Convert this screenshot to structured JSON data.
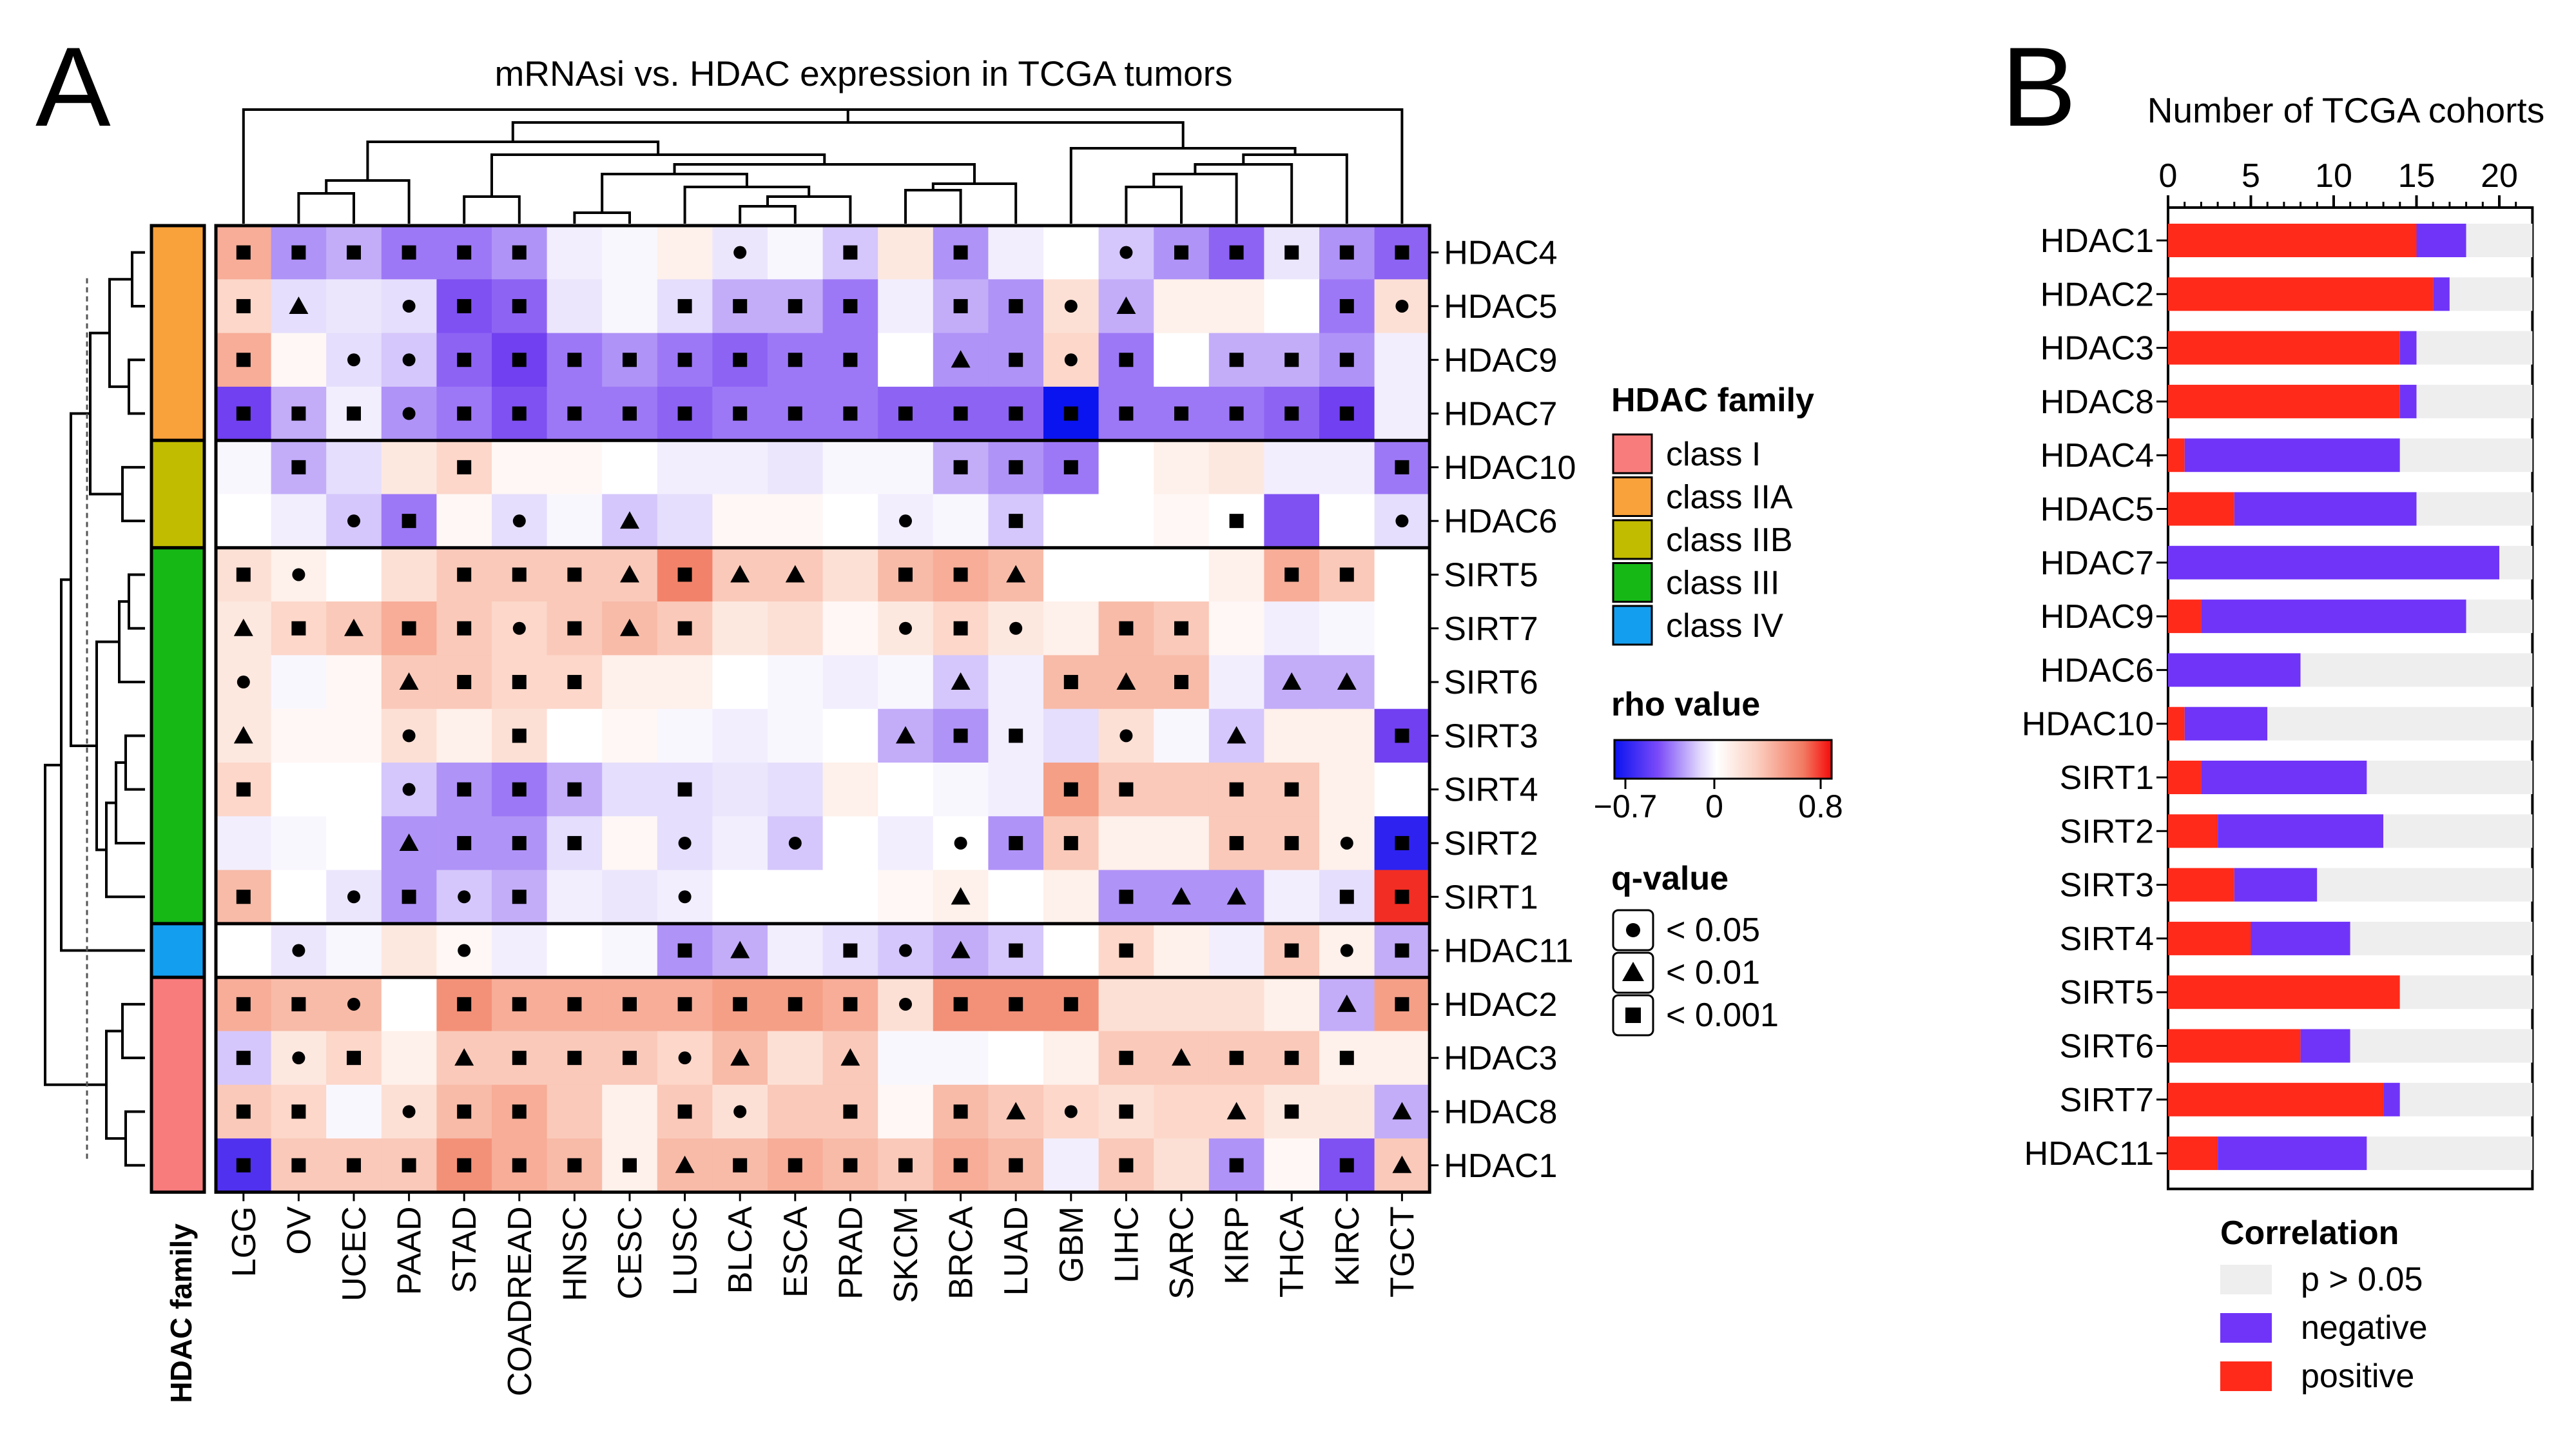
{
  "panel_a_letter": "A",
  "panel_b_letter": "B",
  "chart_data": [
    {
      "type": "heatmap",
      "panel": "A",
      "title": "mRNAsi vs. HDAC expression in TCGA tumors",
      "columns": [
        "LGG",
        "OV",
        "UCEC",
        "PAAD",
        "STAD",
        "COADREAD",
        "HNSC",
        "CESC",
        "LUSC",
        "BLCA",
        "ESCA",
        "PRAD",
        "SKCM",
        "BRCA",
        "LUAD",
        "GBM",
        "LIHC",
        "SARC",
        "KIRP",
        "THCA",
        "KIRC",
        "TGCT"
      ],
      "rows": [
        "HDAC4",
        "HDAC5",
        "HDAC9",
        "HDAC7",
        "HDAC10",
        "HDAC6",
        "SIRT5",
        "SIRT7",
        "SIRT6",
        "SIRT3",
        "SIRT4",
        "SIRT2",
        "SIRT1",
        "HDAC11",
        "HDAC2",
        "HDAC3",
        "HDAC8",
        "HDAC1"
      ],
      "row_family": [
        "class IIA",
        "class IIA",
        "class IIA",
        "class IIA",
        "class IIB",
        "class IIB",
        "class III",
        "class III",
        "class III",
        "class III",
        "class III",
        "class III",
        "class III",
        "class IV",
        "class I",
        "class I",
        "class I",
        "class I"
      ],
      "family_axis_label": "HDAC family",
      "rho_values": [
        [
          0.4,
          -0.35,
          -0.3,
          -0.4,
          -0.4,
          -0.35,
          -0.1,
          -0.05,
          0.1,
          -0.15,
          -0.05,
          -0.25,
          0.15,
          -0.35,
          -0.1,
          0.0,
          -0.25,
          -0.35,
          -0.45,
          -0.15,
          -0.35,
          -0.45
        ],
        [
          0.25,
          -0.2,
          -0.15,
          -0.2,
          -0.5,
          -0.45,
          -0.15,
          -0.05,
          -0.2,
          -0.3,
          -0.3,
          -0.4,
          -0.1,
          -0.3,
          -0.35,
          0.2,
          -0.3,
          0.1,
          0.1,
          0.0,
          -0.4,
          0.2
        ],
        [
          0.4,
          0.05,
          -0.2,
          -0.25,
          -0.45,
          -0.55,
          -0.4,
          -0.35,
          -0.4,
          -0.45,
          -0.4,
          -0.4,
          0.0,
          -0.35,
          -0.35,
          0.25,
          -0.4,
          0.0,
          -0.3,
          -0.3,
          -0.35,
          -0.1
        ],
        [
          -0.55,
          -0.3,
          -0.1,
          -0.35,
          -0.4,
          -0.5,
          -0.4,
          -0.4,
          -0.45,
          -0.4,
          -0.4,
          -0.4,
          -0.45,
          -0.45,
          -0.45,
          -0.7,
          -0.4,
          -0.4,
          -0.4,
          -0.45,
          -0.55,
          -0.1
        ],
        [
          -0.05,
          -0.3,
          -0.2,
          0.15,
          0.25,
          0.05,
          0.05,
          0.0,
          -0.1,
          -0.1,
          -0.15,
          -0.05,
          -0.05,
          -0.3,
          -0.35,
          -0.4,
          0.0,
          0.1,
          0.15,
          -0.1,
          -0.1,
          -0.4
        ],
        [
          0.0,
          -0.1,
          -0.25,
          -0.4,
          0.05,
          -0.2,
          -0.05,
          -0.25,
          -0.2,
          0.05,
          0.05,
          0.0,
          -0.1,
          -0.05,
          -0.25,
          0.0,
          0.0,
          0.05,
          0.0,
          -0.5,
          0.0,
          -0.2
        ],
        [
          0.2,
          0.1,
          0.0,
          0.2,
          0.3,
          0.3,
          0.3,
          0.3,
          0.55,
          0.3,
          0.3,
          0.2,
          0.35,
          0.4,
          0.35,
          0.0,
          0.0,
          0.0,
          0.1,
          0.4,
          0.3,
          0.0
        ],
        [
          0.15,
          0.25,
          0.3,
          0.4,
          0.3,
          0.25,
          0.3,
          0.35,
          0.3,
          0.15,
          0.2,
          0.05,
          0.15,
          0.25,
          0.15,
          0.1,
          0.35,
          0.3,
          0.05,
          -0.1,
          -0.05,
          0.0
        ],
        [
          0.15,
          -0.05,
          0.05,
          0.3,
          0.3,
          0.25,
          0.25,
          0.1,
          0.1,
          0.0,
          -0.05,
          -0.1,
          -0.05,
          -0.25,
          -0.1,
          0.35,
          0.35,
          0.35,
          -0.1,
          -0.3,
          -0.3,
          0.0
        ],
        [
          0.15,
          0.05,
          0.05,
          0.2,
          0.1,
          0.2,
          0.0,
          0.05,
          -0.05,
          -0.1,
          -0.05,
          0.0,
          -0.3,
          -0.35,
          -0.1,
          -0.2,
          0.2,
          -0.05,
          -0.25,
          0.1,
          0.1,
          -0.55
        ],
        [
          0.25,
          0.0,
          0.0,
          -0.25,
          -0.35,
          -0.4,
          -0.3,
          -0.2,
          -0.2,
          -0.15,
          -0.2,
          0.1,
          0.0,
          -0.05,
          -0.1,
          0.45,
          0.3,
          0.3,
          0.3,
          0.3,
          0.1,
          0.0
        ],
        [
          -0.1,
          -0.05,
          0.0,
          -0.35,
          -0.35,
          -0.35,
          -0.2,
          0.05,
          -0.2,
          -0.1,
          -0.25,
          0.0,
          -0.1,
          0.0,
          -0.35,
          0.3,
          0.1,
          0.1,
          0.3,
          0.3,
          0.1,
          -0.65
        ],
        [
          0.35,
          0.0,
          -0.15,
          -0.35,
          -0.25,
          -0.3,
          -0.1,
          -0.15,
          -0.1,
          0.0,
          0.0,
          0.0,
          0.05,
          0.1,
          0.0,
          0.1,
          -0.35,
          -0.35,
          -0.35,
          -0.1,
          -0.2,
          0.75
        ],
        [
          0.0,
          -0.15,
          -0.05,
          0.15,
          0.05,
          -0.1,
          0.0,
          -0.05,
          -0.35,
          -0.3,
          -0.1,
          -0.2,
          -0.25,
          -0.3,
          -0.25,
          0.0,
          0.25,
          0.1,
          -0.1,
          0.3,
          0.1,
          -0.3
        ],
        [
          0.4,
          0.35,
          0.35,
          0.0,
          0.5,
          0.4,
          0.4,
          0.4,
          0.4,
          0.45,
          0.45,
          0.4,
          0.2,
          0.5,
          0.5,
          0.5,
          0.2,
          0.2,
          0.2,
          0.1,
          -0.3,
          0.45
        ],
        [
          -0.25,
          0.15,
          0.25,
          0.1,
          0.3,
          0.3,
          0.3,
          0.3,
          0.25,
          0.35,
          0.2,
          0.3,
          -0.05,
          -0.05,
          0.0,
          0.1,
          0.3,
          0.3,
          0.3,
          0.3,
          0.1,
          0.1
        ],
        [
          0.3,
          0.25,
          -0.05,
          0.2,
          0.35,
          0.4,
          0.3,
          0.1,
          0.3,
          0.2,
          0.3,
          0.3,
          0.05,
          0.35,
          0.3,
          0.25,
          0.2,
          0.25,
          0.25,
          0.15,
          0.15,
          -0.3
        ],
        [
          -0.6,
          0.3,
          0.3,
          0.3,
          0.5,
          0.4,
          0.35,
          0.1,
          0.35,
          0.35,
          0.4,
          0.35,
          0.3,
          0.4,
          0.35,
          -0.1,
          0.3,
          0.2,
          -0.35,
          0.05,
          -0.5,
          0.3
        ]
      ],
      "significance_codes": [
        "SSSSSSxxxCxSxSxxCSSSSS",
        "STxCSSxxSSSSxSSCTxxxSC",
        "SxCCSSSSSSSSxTSCSxSSSx",
        "SSSCSSSSSSSSSSSSSSSSSx",
        "xSxxSxxxxxxxxSSSxxxxxS",
        "xxCSxCxTxxxxCxSxxxSxxC",
        "SCxxSSSTSTTxSSTxxxxSSx",
        "TSTSSCSTSxxxCSCxSSxxxx",
        "CxxTSSSxxxxxxTxSTSxTTx",
        "TxxCxSxxxxxxTSSxCxTxxS",
        "SxxCSSSxSxxxxxxSSxSSxx",
        "xxxTSSSxCxCxxCSSxxSSCS",
        "SxCSCSxxCxxxxTxxSTTxSS",
        "xCxxCxxxSTxSCTSxSxxSCS",
        "SSCxSSSSSSSSCSSSxxxxTS",
        "SCSxTSSSCTxTxxxxSTSSSx",
        "SSxCSSxxSCxSxSTCSxTSxT",
        "SSSSSSSSTSSSSSSxSxSxST"
      ],
      "significance_code_key": {
        "C": "q < 0.05",
        "T": "q < 0.01",
        "S": "q < 0.001",
        "x": "not significant"
      },
      "legend": {
        "family_title": "HDAC family",
        "families": [
          {
            "name": "class I",
            "color": "#f97c7c"
          },
          {
            "name": "class IIA",
            "color": "#f9a13a"
          },
          {
            "name": "class IIB",
            "color": "#c2bc00"
          },
          {
            "name": "class III",
            "color": "#16b816"
          },
          {
            "name": "class IV",
            "color": "#149ef0"
          }
        ],
        "rho_title": "rho value",
        "rho_min_label": "−0.7",
        "rho_mid_label": "0",
        "rho_max_label": "0.8",
        "rho_range": [
          -0.7,
          0.8
        ],
        "q_title": "q-value",
        "q_items": [
          "< 0.05",
          "< 0.01",
          "< 0.001"
        ]
      }
    },
    {
      "type": "bar",
      "panel": "B",
      "orientation": "horizontal",
      "stacked": true,
      "xlabel": "Number of TCGA cohorts",
      "xlim": [
        0,
        22
      ],
      "xticks": [
        0,
        5,
        10,
        15,
        20
      ],
      "categories": [
        "HDAC1",
        "HDAC2",
        "HDAC3",
        "HDAC8",
        "HDAC4",
        "HDAC5",
        "HDAC7",
        "HDAC9",
        "HDAC6",
        "HDAC10",
        "SIRT1",
        "SIRT2",
        "SIRT3",
        "SIRT4",
        "SIRT5",
        "SIRT6",
        "SIRT7",
        "HDAC11"
      ],
      "series": [
        {
          "name": "positive",
          "color": "#ff2a1a",
          "values": [
            15,
            16,
            14,
            14,
            1,
            4,
            0,
            2,
            0,
            1,
            2,
            3,
            4,
            5,
            14,
            8,
            13,
            3
          ]
        },
        {
          "name": "negative",
          "color": "#7034f8",
          "values": [
            3,
            1,
            1,
            1,
            13,
            11,
            20,
            16,
            8,
            5,
            10,
            10,
            5,
            6,
            0,
            3,
            1,
            9
          ]
        },
        {
          "name": "p > 0.05",
          "color": "#eeeeee",
          "values": [
            4,
            5,
            7,
            7,
            8,
            7,
            2,
            4,
            14,
            16,
            10,
            9,
            13,
            11,
            8,
            11,
            8,
            10
          ]
        }
      ],
      "legend_title": "Correlation"
    }
  ]
}
